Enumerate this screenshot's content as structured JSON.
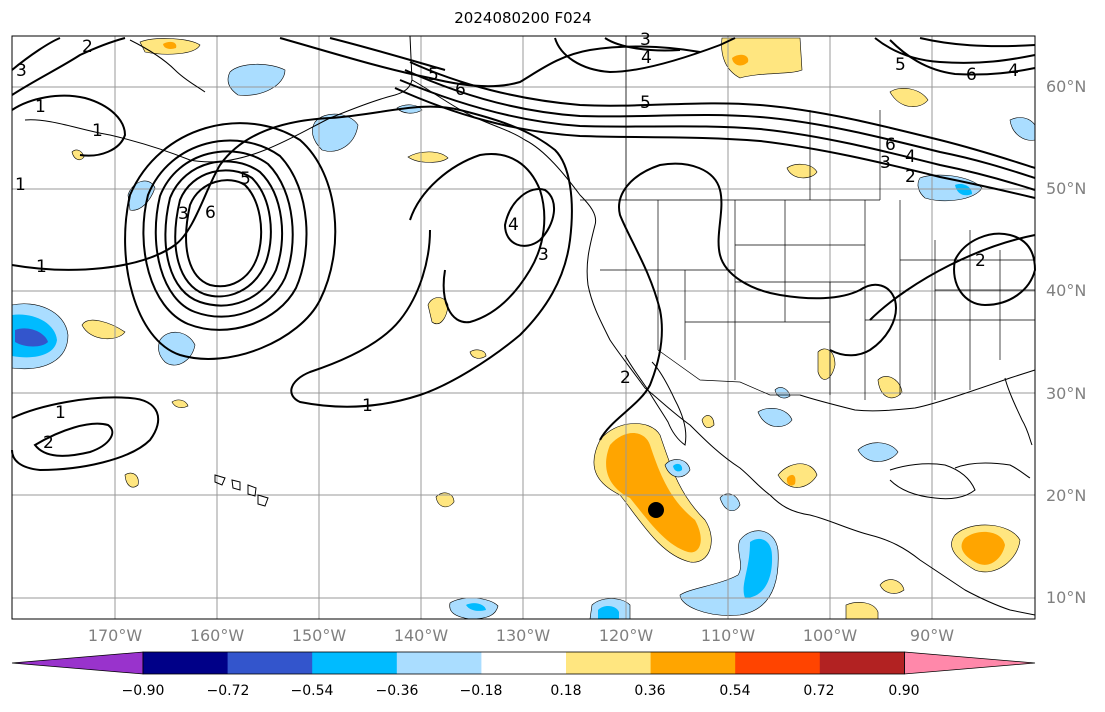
{
  "title": "2024080200 F024",
  "lat_labels": [
    "60°N",
    "50°N",
    "40°N",
    "30°N",
    "20°N",
    "10°N"
  ],
  "lon_labels": [
    "170°W",
    "160°W",
    "150°W",
    "140°W",
    "130°W",
    "120°W",
    "110°W",
    "100°W",
    "90°W"
  ],
  "contour_labels": [
    "1",
    "1",
    "1",
    "1",
    "1",
    "2",
    "2",
    "2",
    "3",
    "3",
    "3",
    "3",
    "4",
    "4",
    "4",
    "4",
    "5",
    "5",
    "5",
    "5",
    "6",
    "6",
    "6",
    "6",
    "2",
    "3",
    "1",
    "2"
  ],
  "colorbar": {
    "ticks": [
      "−0.90",
      "−0.72",
      "−0.54",
      "−0.36",
      "−0.18",
      "0.18",
      "0.36",
      "0.54",
      "0.72",
      "0.90"
    ],
    "colors": [
      "#9933cc",
      "#000088",
      "#3355cc",
      "#00bbff",
      "#aaddff",
      "#ffffff",
      "#ffe680",
      "#ffa500",
      "#ff4400",
      "#b22222",
      "#ff88aa"
    ]
  },
  "marker_color": "#000000"
}
